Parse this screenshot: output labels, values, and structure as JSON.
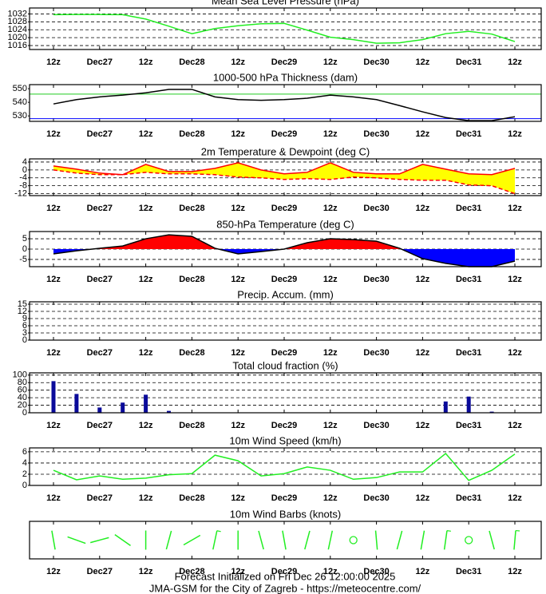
{
  "chart_data": [
    {
      "type": "line",
      "title": "Mean Sea Level Pressure (hPa)",
      "categories": [
        "12z",
        null,
        "Dec27",
        null,
        "12z",
        null,
        "Dec28",
        null,
        "12z",
        null,
        "Dec29",
        null,
        "12z",
        null,
        "Dec30",
        null,
        "12z",
        null,
        "Dec31",
        null,
        "12z"
      ],
      "series": [
        {
          "color": "#22ee22",
          "values": [
            1031.6,
            1031.7,
            1031.7,
            1031.6,
            1029.4,
            1025.8,
            1022,
            1024.6,
            1026,
            1027,
            1027.2,
            1023.8,
            1020.2,
            1019,
            1017.2,
            1017.4,
            1019,
            1022,
            1023.2,
            1021.8,
            1018
          ]
        }
      ],
      "ylim": [
        1014,
        1035
      ],
      "yticks": [
        1016,
        1020,
        1024,
        1028,
        1032
      ],
      "grid": true
    },
    {
      "type": "line",
      "title": "1000-500 hPa Thickness (dam)",
      "categories": [
        "12z",
        null,
        "Dec27",
        null,
        "12z",
        null,
        "Dec28",
        null,
        "12z",
        null,
        "Dec29",
        null,
        "12z",
        null,
        "Dec30",
        null,
        "12z",
        null,
        "Dec31",
        null,
        "12z"
      ],
      "series": [
        {
          "color": "#000000",
          "values": [
            538.8,
            542,
            544,
            545.3,
            547,
            549.5,
            549.5,
            544,
            542,
            541.5,
            542,
            543,
            545.3,
            544,
            542,
            537.6,
            533,
            528.8,
            526.5,
            526.5,
            529.4
          ]
        }
      ],
      "reference_lines": [
        {
          "value": 546,
          "color": "#22cc22"
        },
        {
          "value": 528,
          "color": "#0000ff"
        }
      ],
      "ylim": [
        526,
        553
      ],
      "yticks": [
        530,
        540,
        550
      ],
      "grid": false
    },
    {
      "type": "line",
      "title": "2m Temperature & Dewpoint (deg C)",
      "categories": [
        "12z",
        null,
        "Dec27",
        null,
        "12z",
        null,
        "Dec28",
        null,
        "12z",
        null,
        "Dec29",
        null,
        "12z",
        null,
        "Dec30",
        null,
        "12z",
        null,
        "Dec31",
        null,
        "12z"
      ],
      "series": [
        {
          "color": "#ff0000",
          "dash": false,
          "values": [
            2,
            0.4,
            -1.6,
            -2.4,
            2.8,
            -0.8,
            -0.8,
            0.8,
            3.6,
            0,
            -2,
            -1.2,
            3.6,
            -1.2,
            -2,
            -2,
            2.8,
            0.4,
            -2,
            -2.4,
            0.8
          ]
        },
        {
          "color": "#ff0000",
          "dash": true,
          "values": [
            0,
            -1.6,
            -2.4,
            -2.4,
            -1.2,
            -2,
            -2,
            -2.4,
            -3.6,
            -4,
            -4.8,
            -4.4,
            -4.8,
            -3.6,
            -4,
            -4.8,
            -5.2,
            -5.2,
            -7.6,
            -8,
            -12
          ]
        }
      ],
      "fill_between": "#ffff00",
      "ylim": [
        -13,
        5.6
      ],
      "yticks": [
        -12,
        -8,
        -4,
        0,
        4
      ],
      "grid": true
    },
    {
      "type": "area",
      "title": "850-hPa Temperature (deg C)",
      "categories": [
        "12z",
        null,
        "Dec27",
        null,
        "12z",
        null,
        "Dec28",
        null,
        "12z",
        null,
        "Dec29",
        null,
        "12z",
        null,
        "Dec30",
        null,
        "12z",
        null,
        "Dec31",
        null,
        "12z"
      ],
      "series": [
        {
          "color": "#000000",
          "values": [
            -2.3,
            -0.8,
            0.4,
            1.5,
            5,
            6.9,
            6.2,
            0.4,
            -2.3,
            -1.2,
            0,
            3.1,
            5,
            4.6,
            3.8,
            0.4,
            -4.6,
            -6.9,
            -8.5,
            -8.5,
            -5.8
          ]
        }
      ],
      "positive_color": "#ff0000",
      "negative_color": "#0000ff",
      "ylim": [
        -8.5,
        8.5
      ],
      "yticks": [
        -5,
        0,
        5
      ],
      "grid": true
    },
    {
      "type": "bar",
      "title": "Precip. Accum. (mm)",
      "categories": [
        "12z",
        null,
        "Dec27",
        null,
        "12z",
        null,
        "Dec28",
        null,
        "12z",
        null,
        "Dec29",
        null,
        "12z",
        null,
        "Dec30",
        null,
        "12z",
        null,
        "Dec31",
        null,
        "12z"
      ],
      "values": [
        0,
        0,
        0,
        0,
        0,
        0,
        0,
        0,
        0,
        0,
        0,
        0,
        0,
        0,
        0,
        0,
        0,
        0,
        0,
        0,
        0
      ],
      "color": "#00aa00",
      "ylim": [
        0,
        16
      ],
      "yticks": [
        0,
        3,
        6,
        9,
        12,
        15
      ],
      "grid": true
    },
    {
      "type": "bar",
      "title": "Total cloud fraction (%)",
      "categories": [
        "12z",
        null,
        "Dec27",
        null,
        "12z",
        null,
        "Dec28",
        null,
        "12z",
        null,
        "Dec29",
        null,
        "12z",
        null,
        "Dec30",
        null,
        "12z",
        null,
        "Dec31",
        null,
        "12z"
      ],
      "values": [
        84,
        50,
        14,
        27,
        48,
        5,
        0,
        0,
        0,
        0,
        0,
        0,
        0,
        0,
        0,
        0,
        0,
        30,
        43,
        3,
        0
      ],
      "color": "#0a0a9a",
      "ylim": [
        0,
        106
      ],
      "yticks": [
        0,
        20,
        40,
        60,
        80,
        100
      ],
      "grid": true
    },
    {
      "type": "line",
      "title": "10m Wind Speed (km/h)",
      "categories": [
        "12z",
        null,
        "Dec27",
        null,
        "12z",
        null,
        "Dec28",
        null,
        "12z",
        null,
        "Dec29",
        null,
        "12z",
        null,
        "Dec30",
        null,
        "12z",
        null,
        "Dec31",
        null,
        "12z"
      ],
      "series": [
        {
          "color": "#22ee22",
          "values": [
            2.7,
            1,
            1.7,
            1.1,
            1.3,
            1.9,
            2.1,
            5.4,
            4.4,
            1.7,
            2.1,
            3.3,
            2.7,
            1.1,
            1.4,
            2.4,
            2.4,
            5.7,
            0.9,
            2.7,
            5.6
          ]
        }
      ],
      "ylim": [
        0,
        6.7
      ],
      "yticks": [
        0,
        2,
        4,
        6
      ],
      "grid": true
    },
    {
      "type": "barb",
      "title": "10m Wind Barbs  (knots)",
      "categories": [
        "12z",
        null,
        "Dec27",
        null,
        "12z",
        null,
        "Dec28",
        null,
        "12z",
        null,
        "Dec29",
        null,
        "12z",
        null,
        "Dec30",
        null,
        "12z",
        null,
        "Dec31",
        null,
        "12z"
      ],
      "speeds": [
        1.5,
        0.5,
        0.9,
        0.6,
        0.7,
        1,
        1.1,
        2.9,
        2.4,
        0.9,
        1.1,
        1.8,
        1.5,
        0,
        0.8,
        1.3,
        1.3,
        3.1,
        0,
        1.5,
        3
      ],
      "directions": [
        350,
        290,
        75,
        305,
        0,
        15,
        60,
        12,
        0,
        345,
        350,
        15,
        12,
        0,
        355,
        15,
        10,
        8,
        0,
        345,
        5
      ],
      "color": "#22ee22"
    }
  ],
  "footer": [
    "Forecast Initialized on Fri Dec 26 12:00:00 2025",
    "JMA-GSM for the City of Zagreb - https://meteocentre.com/"
  ]
}
